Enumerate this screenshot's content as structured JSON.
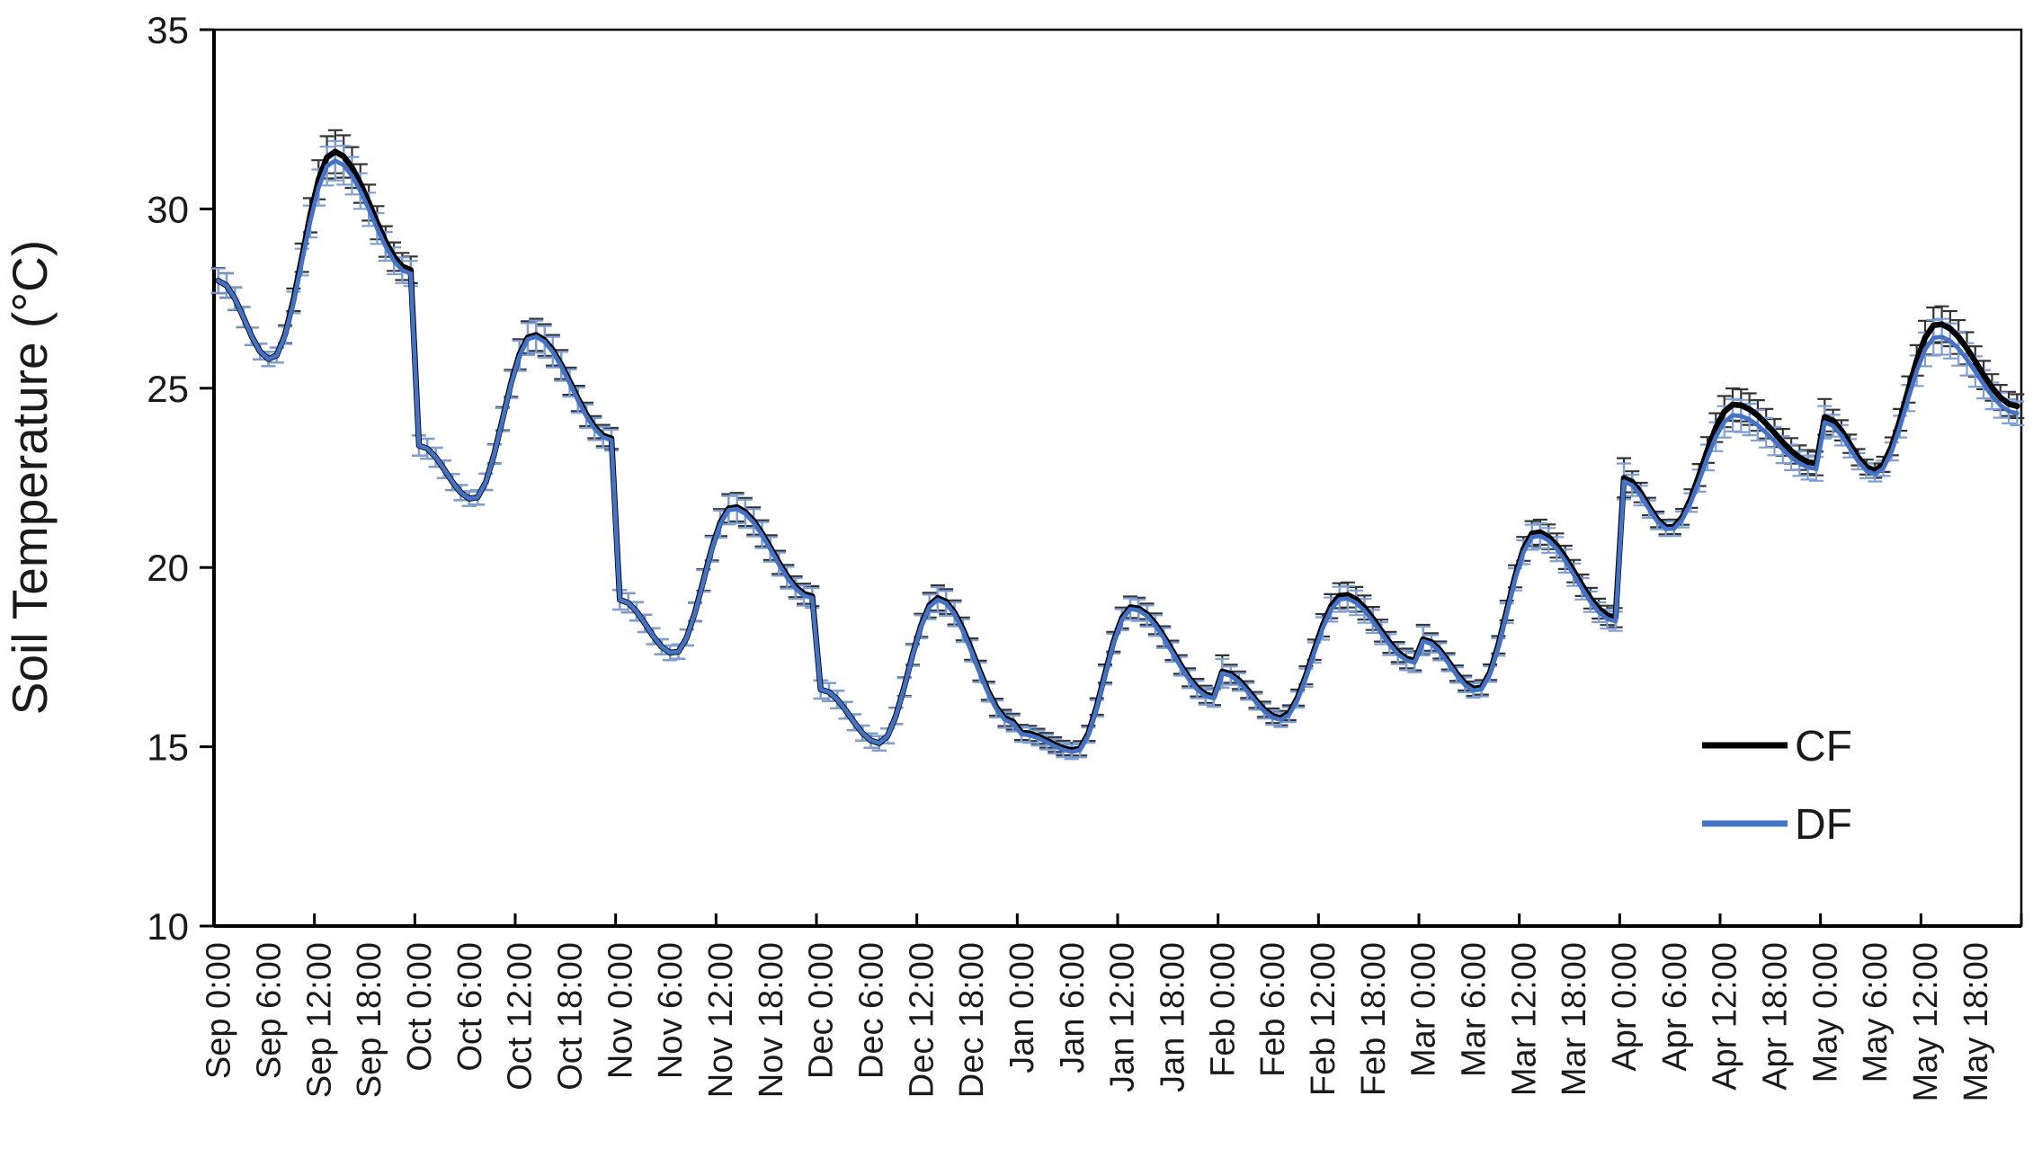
{
  "page": {
    "background": "#ffffff"
  },
  "chart_data": {
    "type": "line",
    "title": "",
    "ylabel": "Soil Temperature (°C)",
    "xlabel": "",
    "ylim": [
      10,
      35
    ],
    "yticks": [
      10,
      15,
      20,
      25,
      30,
      35
    ],
    "grid": false,
    "legend_position": "inside-right",
    "months": [
      "Sep",
      "Oct",
      "Nov",
      "Dec",
      "Jan",
      "Feb",
      "Mar",
      "Apr",
      "May"
    ],
    "points_per_month": 24,
    "x_label_every_hours": 6,
    "x_tick_every_hours": 12,
    "x_tick_labels": [
      "Sep 0:00",
      "Sep 6:00",
      "Sep 12:00",
      "Sep 18:00",
      "Oct 0:00",
      "Oct 6:00",
      "Oct 12:00",
      "Oct 18:00",
      "Nov 0:00",
      "Nov 6:00",
      "Nov 12:00",
      "Nov 18:00",
      "Dec 0:00",
      "Dec 6:00",
      "Dec 12:00",
      "Dec 18:00",
      "Jan 0:00",
      "Jan 6:00",
      "Jan 12:00",
      "Jan 18:00",
      "Feb 0:00",
      "Feb 6:00",
      "Feb 12:00",
      "Feb 18:00",
      "Mar 0:00",
      "Mar 6:00",
      "Mar 12:00",
      "Mar 18:00",
      "Apr 0:00",
      "Apr 6:00",
      "Apr 12:00",
      "Apr 18:00",
      "May 0:00",
      "May 6:00",
      "May 12:00",
      "May 18:00"
    ],
    "series": [
      {
        "name": "CF",
        "color": "#000000",
        "error_color": "#333333",
        "err_min": 0.2,
        "monthly_diurnal": [
          {
            "month": "Sep",
            "start": 28.0,
            "min": 25.8,
            "min_hour": 6.3,
            "peak": 31.6,
            "peak_hour": 13.8,
            "end": 28.3,
            "err_peak": 0.6
          },
          {
            "month": "Oct",
            "start": 23.4,
            "min": 21.9,
            "min_hour": 6.5,
            "peak": 26.5,
            "peak_hour": 13.6,
            "end": 23.6,
            "err_peak": 0.45
          },
          {
            "month": "Nov",
            "start": 19.1,
            "min": 17.6,
            "min_hour": 6.5,
            "peak": 21.7,
            "peak_hour": 13.5,
            "end": 19.2,
            "err_peak": 0.4
          },
          {
            "month": "Dec",
            "start": 16.6,
            "min": 15.1,
            "min_hour": 7.0,
            "peak": 19.15,
            "peak_hour": 14.0,
            "end": 15.7,
            "err_peak": 0.35
          },
          {
            "month": "Jan",
            "start": 15.4,
            "min": 14.9,
            "min_hour": 6.5,
            "peak": 18.9,
            "peak_hour": 13.2,
            "end": 16.4,
            "err_peak": 0.3
          },
          {
            "month": "Feb",
            "start": 17.1,
            "min": 15.8,
            "min_hour": 7.0,
            "peak": 19.25,
            "peak_hour": 14.5,
            "end": 17.4,
            "err_peak": 0.35,
            "err_start": 0.45
          },
          {
            "month": "Mar",
            "start": 18.0,
            "min": 16.6,
            "min_hour": 6.5,
            "peak": 21.0,
            "peak_hour": 13.5,
            "end": 18.6,
            "err_peak": 0.35,
            "err_start": 0.4
          },
          {
            "month": "Apr",
            "start": 22.5,
            "min": 21.1,
            "min_hour": 5.5,
            "peak": 24.55,
            "peak_hour": 13.2,
            "end": 22.9,
            "err_peak": 0.45,
            "err_start": 0.55
          },
          {
            "month": "May",
            "start": 24.2,
            "min": 22.7,
            "min_hour": 6.0,
            "peak": 26.8,
            "peak_hour": 13.5,
            "end": 24.5,
            "err_peak": 0.5,
            "err_start": 0.5
          }
        ]
      },
      {
        "name": "DF",
        "color": "#4472C4",
        "error_color": "#7D9FD3",
        "err_min": 0.2,
        "monthly_diurnal": [
          {
            "month": "Sep",
            "start": 28.0,
            "min": 25.8,
            "min_hour": 6.3,
            "peak": 31.35,
            "peak_hour": 13.8,
            "end": 28.2,
            "err_peak": 0.55
          },
          {
            "month": "Oct",
            "start": 23.4,
            "min": 21.9,
            "min_hour": 6.5,
            "peak": 26.45,
            "peak_hour": 13.6,
            "end": 23.55,
            "err_peak": 0.45
          },
          {
            "month": "Nov",
            "start": 19.1,
            "min": 17.6,
            "min_hour": 6.5,
            "peak": 21.65,
            "peak_hour": 13.5,
            "end": 19.15,
            "err_peak": 0.4
          },
          {
            "month": "Dec",
            "start": 16.6,
            "min": 15.1,
            "min_hour": 7.0,
            "peak": 19.1,
            "peak_hour": 14.0,
            "end": 15.65,
            "err_peak": 0.35
          },
          {
            "month": "Jan",
            "start": 15.35,
            "min": 14.85,
            "min_hour": 6.5,
            "peak": 18.85,
            "peak_hour": 13.2,
            "end": 16.35,
            "err_peak": 0.3
          },
          {
            "month": "Feb",
            "start": 17.05,
            "min": 15.75,
            "min_hour": 7.0,
            "peak": 19.15,
            "peak_hour": 14.5,
            "end": 17.35,
            "err_peak": 0.35,
            "err_start": 0.4
          },
          {
            "month": "Mar",
            "start": 17.95,
            "min": 16.55,
            "min_hour": 6.5,
            "peak": 20.9,
            "peak_hour": 13.5,
            "end": 18.5,
            "err_peak": 0.35,
            "err_start": 0.4
          },
          {
            "month": "Apr",
            "start": 22.4,
            "min": 21.05,
            "min_hour": 5.5,
            "peak": 24.25,
            "peak_hour": 13.2,
            "end": 22.75,
            "err_peak": 0.45,
            "err_start": 0.5
          },
          {
            "month": "May",
            "start": 24.05,
            "min": 22.6,
            "min_hour": 6.0,
            "peak": 26.45,
            "peak_hour": 13.5,
            "end": 24.3,
            "err_peak": 0.5,
            "err_start": 0.45
          }
        ]
      }
    ],
    "legend": {
      "entries": [
        "CF",
        "DF"
      ]
    }
  }
}
